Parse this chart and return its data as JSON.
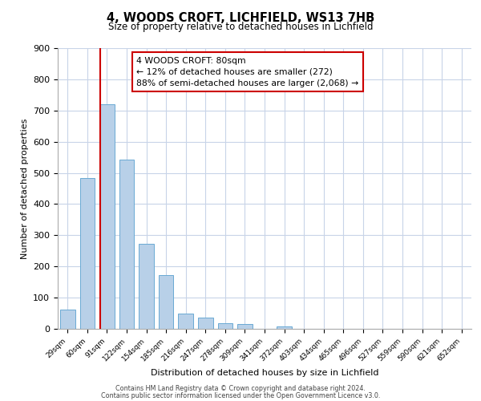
{
  "title": "4, WOODS CROFT, LICHFIELD, WS13 7HB",
  "subtitle": "Size of property relative to detached houses in Lichfield",
  "xlabel": "Distribution of detached houses by size in Lichfield",
  "ylabel": "Number of detached properties",
  "bar_labels": [
    "29sqm",
    "60sqm",
    "91sqm",
    "122sqm",
    "154sqm",
    "185sqm",
    "216sqm",
    "247sqm",
    "278sqm",
    "309sqm",
    "341sqm",
    "372sqm",
    "403sqm",
    "434sqm",
    "465sqm",
    "496sqm",
    "527sqm",
    "559sqm",
    "590sqm",
    "621sqm",
    "652sqm"
  ],
  "bar_values": [
    62,
    483,
    720,
    543,
    272,
    173,
    48,
    35,
    18,
    15,
    0,
    8,
    0,
    0,
    0,
    0,
    0,
    0,
    0,
    0,
    0
  ],
  "bar_color": "#b8d0e8",
  "bar_edge_color": "#6aaad4",
  "vline_color": "#cc0000",
  "ylim": [
    0,
    900
  ],
  "yticks": [
    0,
    100,
    200,
    300,
    400,
    500,
    600,
    700,
    800,
    900
  ],
  "annotation_title": "4 WOODS CROFT: 80sqm",
  "annotation_line1": "← 12% of detached houses are smaller (272)",
  "annotation_line2": "88% of semi-detached houses are larger (2,068) →",
  "annotation_box_color": "#cc0000",
  "background_color": "#ffffff",
  "grid_color": "#c8d4e8",
  "footer1": "Contains HM Land Registry data © Crown copyright and database right 2024.",
  "footer2": "Contains public sector information licensed under the Open Government Licence v3.0.",
  "vline_pos": 1.645,
  "bar_width": 0.75
}
